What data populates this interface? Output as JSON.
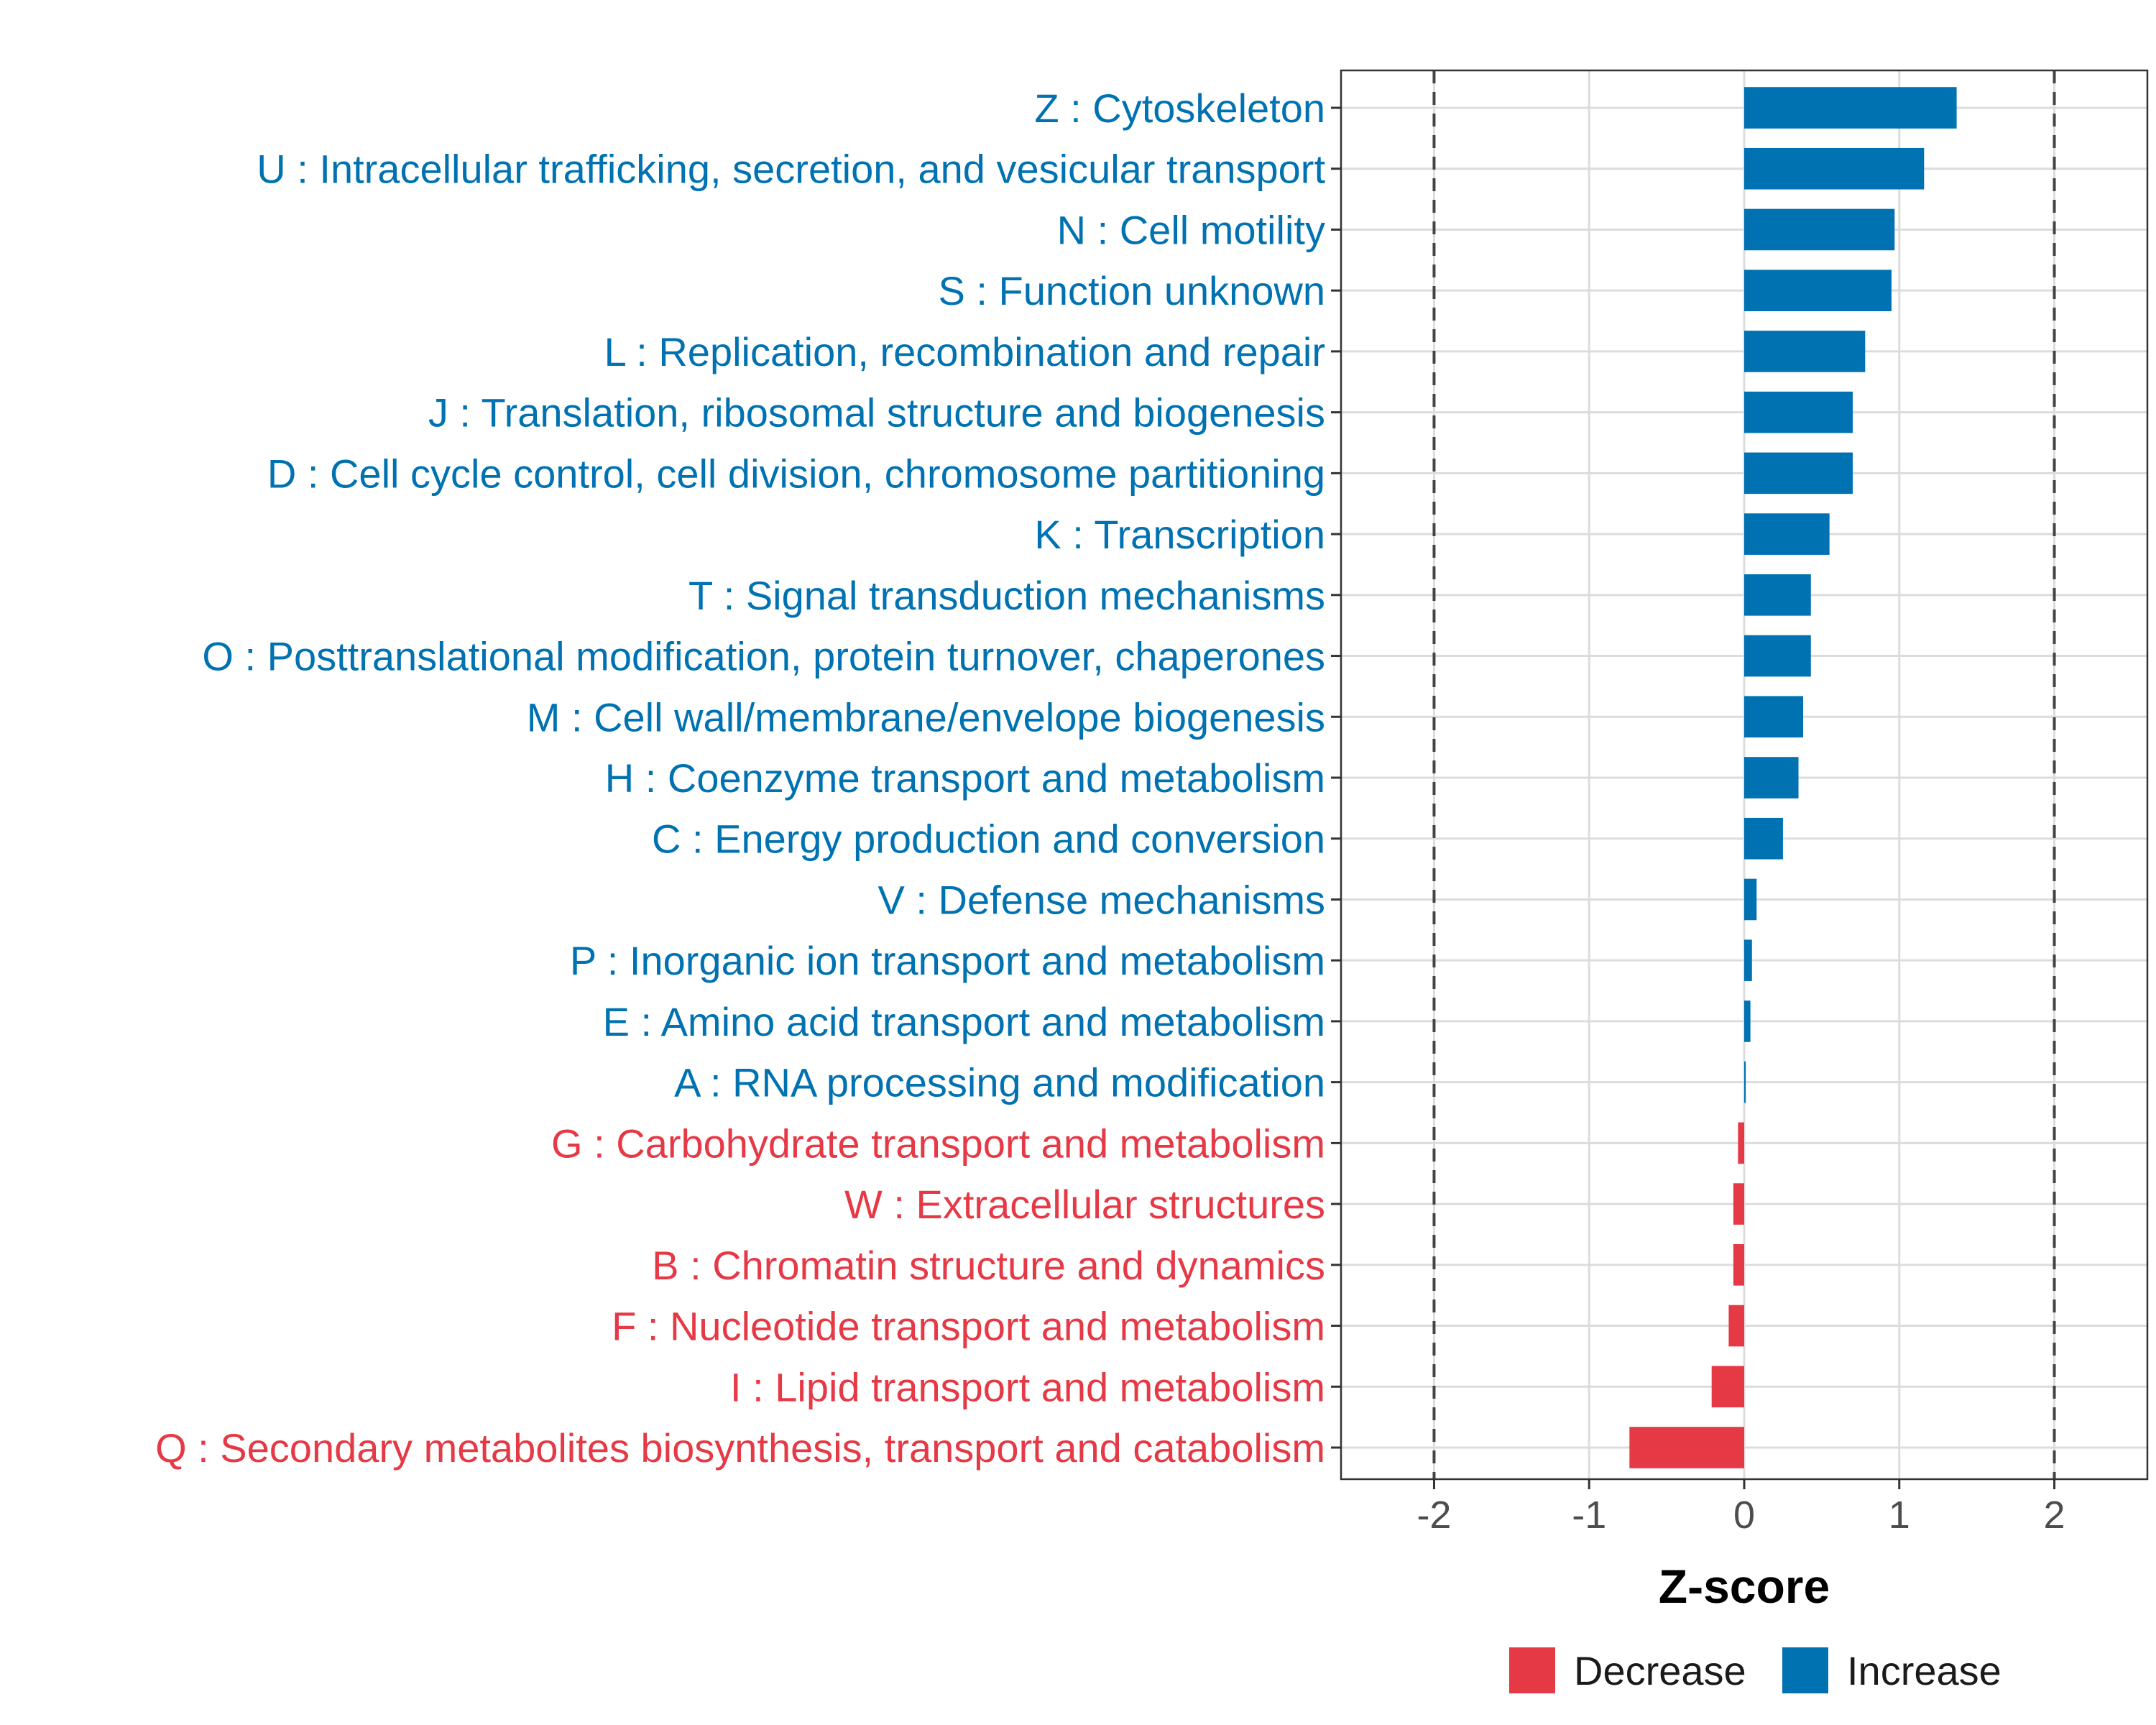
{
  "chart_data": {
    "type": "bar",
    "orientation": "horizontal",
    "title": "",
    "xlabel": "Z-score",
    "ylabel": "",
    "xlim": [
      -2.6,
      2.6
    ],
    "xticks": [
      -2,
      -1,
      0,
      1,
      2
    ],
    "xtick_labels": [
      "-2",
      "-1",
      "0",
      "1",
      "2"
    ],
    "reference_lines": [
      -2,
      2
    ],
    "grid": true,
    "legend_position": "bottom",
    "colors": {
      "Increase": "#0072B2",
      "Decrease": "#E63946"
    },
    "legend": [
      {
        "label": "Decrease",
        "color": "#E63946"
      },
      {
        "label": "Increase",
        "color": "#0072B2"
      }
    ],
    "categories": [
      "Z : Cytoskeleton",
      "U : Intracellular trafficking, secretion, and vesicular transport",
      "N : Cell motility",
      "S : Function unknown",
      "L : Replication, recombination and repair",
      "J : Translation, ribosomal structure and biogenesis",
      "D : Cell cycle control, cell division, chromosome partitioning",
      "K : Transcription",
      "T : Signal transduction mechanisms",
      "O : Posttranslational modification, protein turnover, chaperones",
      "M : Cell wall/membrane/envelope biogenesis",
      "H : Coenzyme transport and metabolism",
      "C : Energy production and conversion",
      "V : Defense mechanisms",
      "P : Inorganic ion transport and metabolism",
      "E : Amino acid transport and metabolism",
      "A : RNA processing and modification",
      "G : Carbohydrate transport and metabolism",
      "W : Extracellular structures",
      "B : Chromatin structure and dynamics",
      "F : Nucleotide transport and metabolism",
      "I : Lipid transport and metabolism",
      "Q : Secondary metabolites biosynthesis, transport and catabolism"
    ],
    "values": [
      1.37,
      1.16,
      0.97,
      0.95,
      0.78,
      0.7,
      0.7,
      0.55,
      0.43,
      0.43,
      0.38,
      0.35,
      0.25,
      0.08,
      0.05,
      0.04,
      0.01,
      -0.04,
      -0.07,
      -0.07,
      -0.1,
      -0.21,
      -0.74
    ],
    "groups": [
      "Increase",
      "Increase",
      "Increase",
      "Increase",
      "Increase",
      "Increase",
      "Increase",
      "Increase",
      "Increase",
      "Increase",
      "Increase",
      "Increase",
      "Increase",
      "Increase",
      "Increase",
      "Increase",
      "Increase",
      "Decrease",
      "Decrease",
      "Decrease",
      "Decrease",
      "Decrease",
      "Decrease"
    ]
  }
}
